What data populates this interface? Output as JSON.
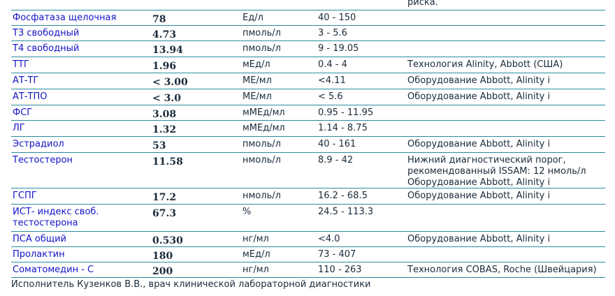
{
  "previous_row_tail": "риска.",
  "rows": [
    {
      "name": "Фосфатаза щелочная",
      "value": "78",
      "unit": "Ед/л",
      "range": "40 - 150",
      "note": ""
    },
    {
      "name": "Т3 свободный",
      "value": "4.73",
      "unit": "пмоль/л",
      "range": "3 - 5.6",
      "note": ""
    },
    {
      "name": "Т4 свободный",
      "value": "13.94",
      "unit": "пмоль/л",
      "range": "9 - 19.05",
      "note": ""
    },
    {
      "name": "ТТГ",
      "value": "1.96",
      "unit": "мЕд/л",
      "range": "0.4 - 4",
      "note": "Технология Alinity, Abbott (США)"
    },
    {
      "name": "АТ-ТГ",
      "value": "< 3.00",
      "unit": "МЕ/мл",
      "range": "<4.11",
      "note": "Оборудование Abbott, Alinity i"
    },
    {
      "name": "АТ-ТПО",
      "value": "< 3.0",
      "unit": "МЕ/мл",
      "range": "< 5.6",
      "note": "Оборудование Abbott, Alinity i"
    },
    {
      "name": "ФСГ",
      "value": "3.08",
      "unit": "мМЕд/мл",
      "range": "0.95 - 11.95",
      "note": ""
    },
    {
      "name": "ЛГ",
      "value": "1.32",
      "unit": "мМЕд/мл",
      "range": "1.14 - 8.75",
      "note": ""
    },
    {
      "name": "Эстрадиол",
      "value": "53",
      "unit": "пмоль/л",
      "range": "40 - 161",
      "note": "Оборудование Abbott, Alinity i"
    },
    {
      "name": "Тестостерон",
      "value": "11.58",
      "unit": "нмоль/л",
      "range": "8.9 - 42",
      "note": "Нижний диагностический порог,\nрекомендованный ISSAM: 12 нмоль/л\nОборудование Abbott, Alinity i"
    },
    {
      "name": "ГСПГ",
      "value": "17.2",
      "unit": "нмоль/л",
      "range": "16.2 - 68.5",
      "note": "Оборудование Abbott, Alinity i"
    },
    {
      "name": "ИСТ- индекс своб. тестостерона",
      "value": "67.3",
      "unit": "%",
      "range": "24.5 - 113.3",
      "note": ""
    },
    {
      "name": "ПСА общий",
      "value": "0.530",
      "unit": "нг/мл",
      "range": "<4.0",
      "note": "Оборудование Abbott, Alinity i"
    },
    {
      "name": "Пролактин",
      "value": "180",
      "unit": "мЕд/л",
      "range": "73 - 407",
      "note": ""
    },
    {
      "name": "Соматомедин - С",
      "value": "200",
      "unit": "нг/мл",
      "range": "110 - 263",
      "note": "Технология COBAS, Roche (Швейцария)"
    }
  ],
  "footer": "Исполнитель Кузенков В.В., врач клинической лабораторной диагностики"
}
